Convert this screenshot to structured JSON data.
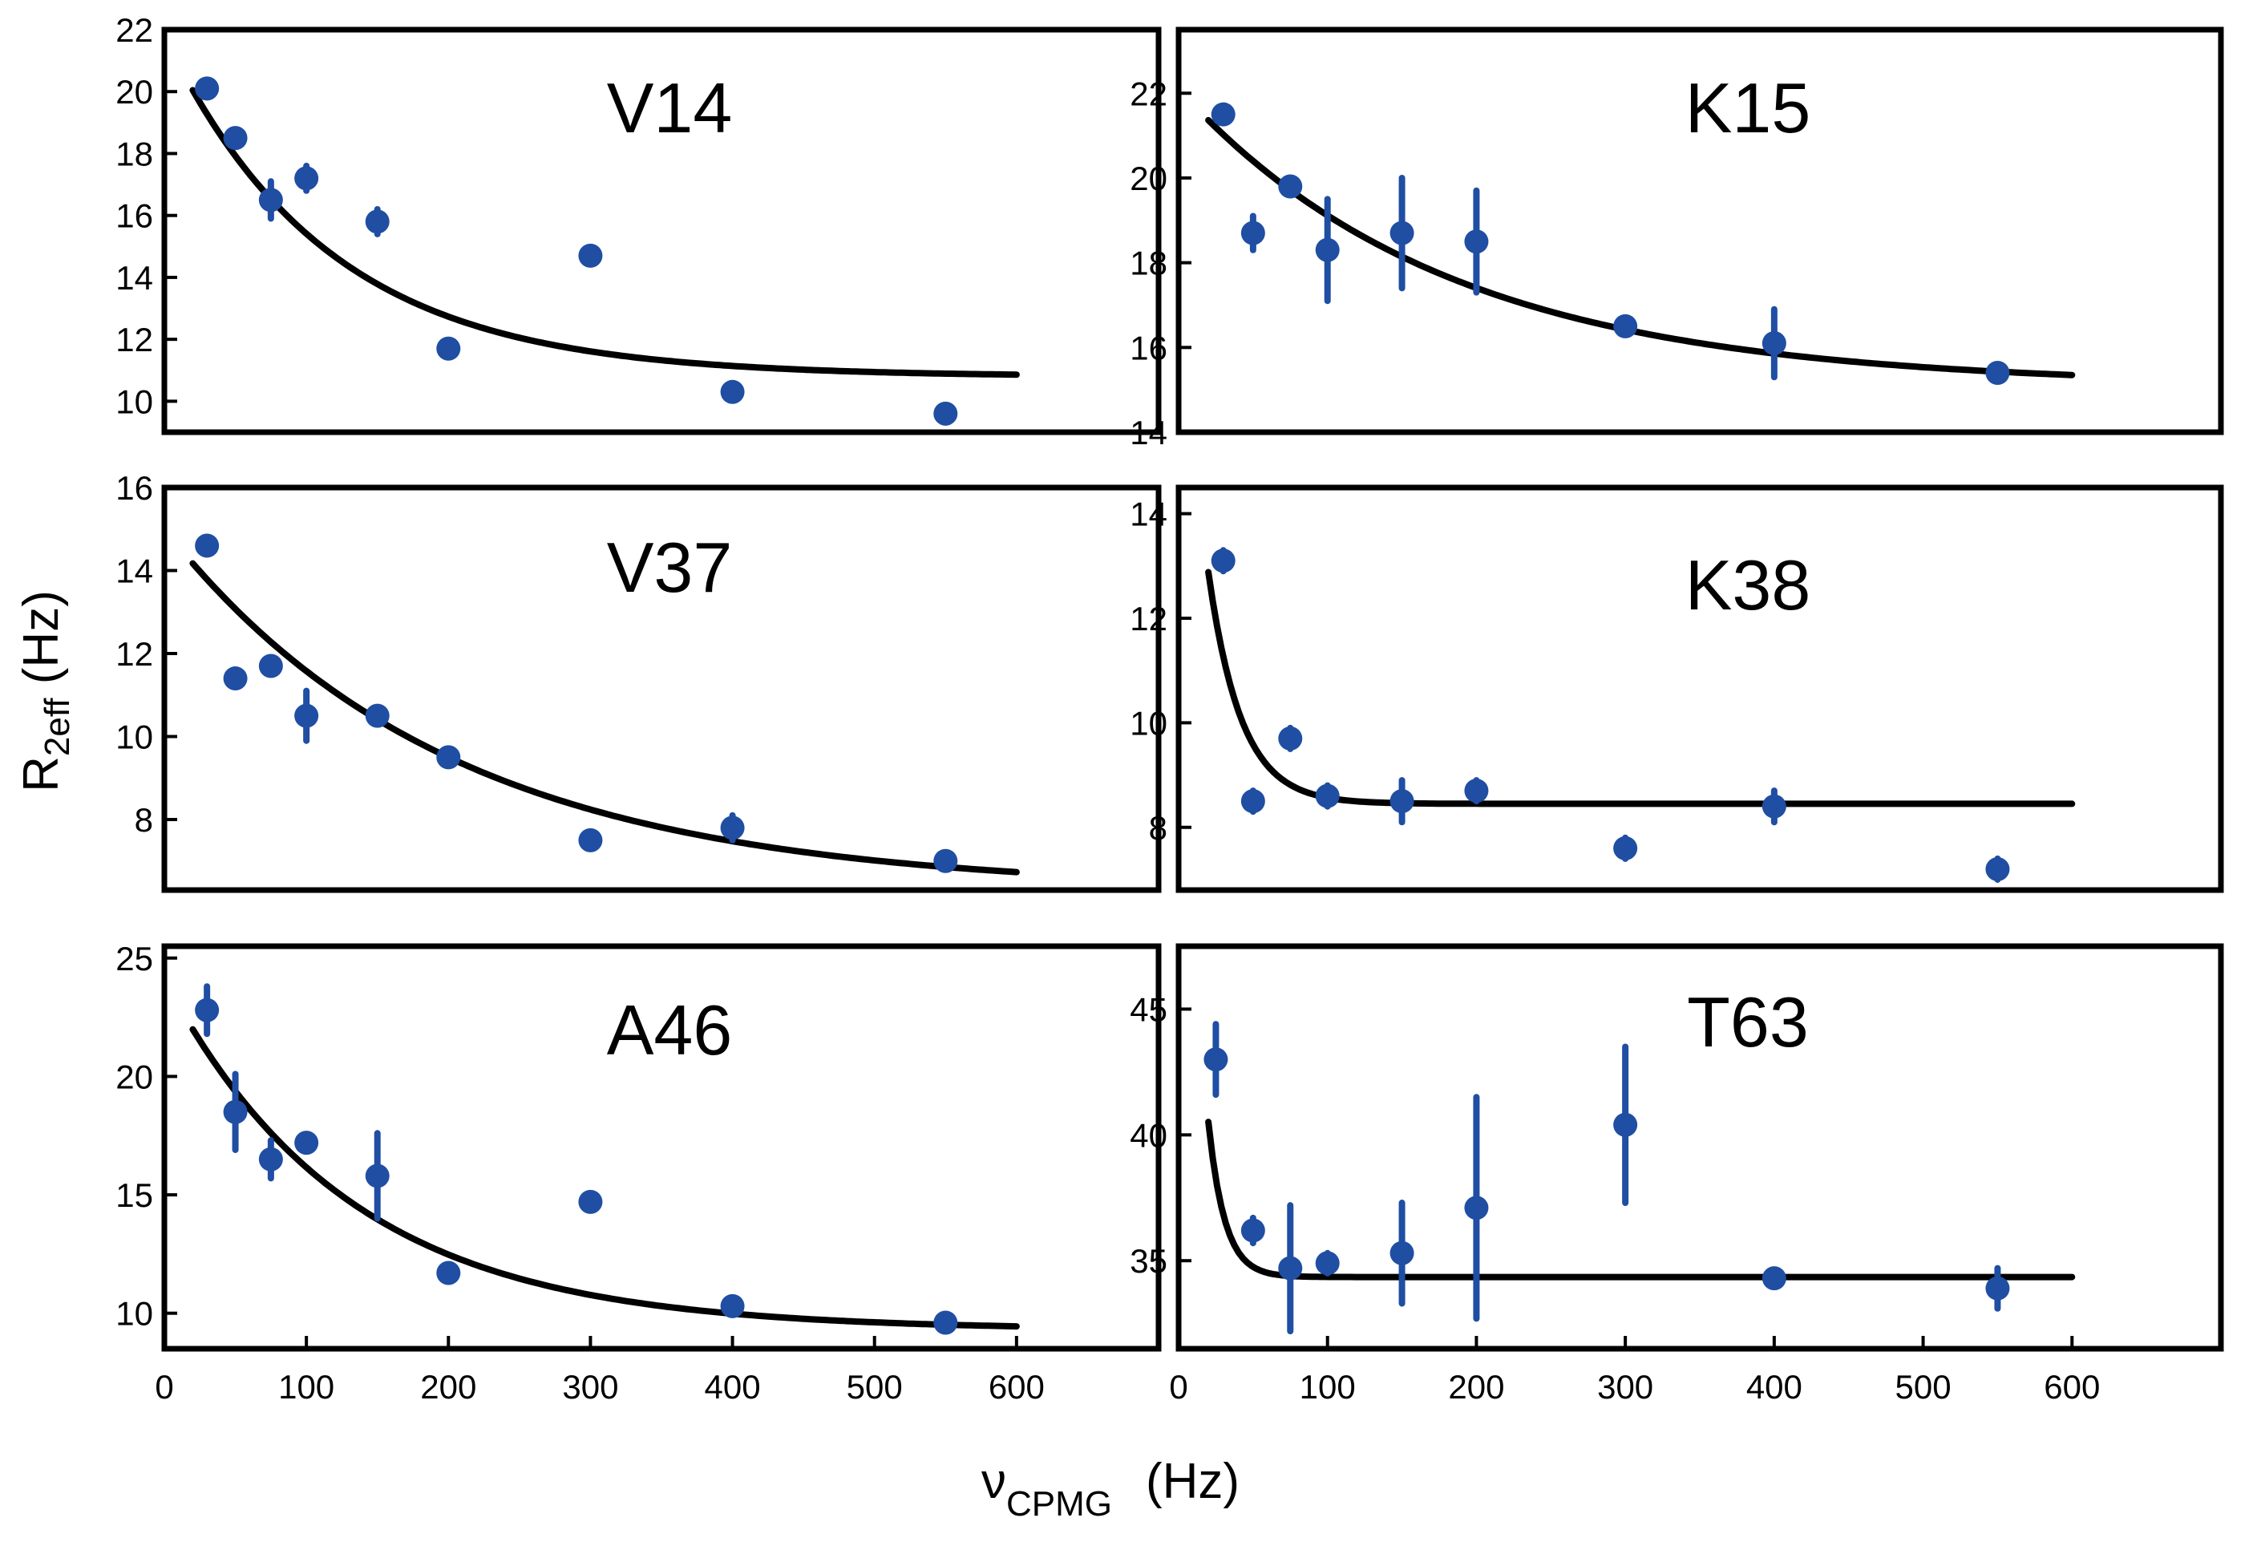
{
  "figure": {
    "ylabel_main": "R",
    "ylabel_sub": "2eff",
    "ylabel_unit": " (Hz)",
    "xlabel_main": "ν",
    "xlabel_sub": "CPMG",
    "xlabel_unit": "(Hz)"
  },
  "colors": {
    "points": "#1f4ea3",
    "fit": "#000000"
  },
  "chart_data": [
    {
      "type": "scatter",
      "title": "V14",
      "xlim": [
        0,
        700
      ],
      "ylim": [
        9,
        22
      ],
      "yticks": [
        10,
        12,
        14,
        16,
        18,
        20,
        22
      ],
      "xticks": [],
      "points": [
        {
          "x": 30,
          "y": 20.1,
          "err": 0.2
        },
        {
          "x": 50,
          "y": 18.5,
          "err": 0.2
        },
        {
          "x": 75,
          "y": 16.5,
          "err": 0.6
        },
        {
          "x": 100,
          "y": 17.2,
          "err": 0.4
        },
        {
          "x": 150,
          "y": 15.8,
          "err": 0.4
        },
        {
          "x": 200,
          "y": 11.7,
          "err": 0.2
        },
        {
          "x": 300,
          "y": 14.7,
          "err": 0.2
        },
        {
          "x": 400,
          "y": 10.3,
          "err": 0.2
        },
        {
          "x": 550,
          "y": 9.6,
          "err": 0.2
        }
      ],
      "fit": {
        "model": "exp",
        "base": 10.8,
        "amp": 11.0,
        "tau": 115,
        "xmin": 20,
        "xmax": 600
      }
    },
    {
      "type": "scatter",
      "title": "K15",
      "xlim": [
        0,
        700
      ],
      "ylim": [
        14,
        23.5
      ],
      "yticks": [
        14,
        16,
        18,
        20,
        22
      ],
      "xticks": [],
      "points": [
        {
          "x": 30,
          "y": 21.5,
          "err": 0.2
        },
        {
          "x": 50,
          "y": 18.7,
          "err": 0.4
        },
        {
          "x": 75,
          "y": 19.8,
          "err": 0.2
        },
        {
          "x": 100,
          "y": 18.3,
          "err": 1.2
        },
        {
          "x": 150,
          "y": 18.7,
          "err": 1.3
        },
        {
          "x": 200,
          "y": 18.5,
          "err": 1.2
        },
        {
          "x": 300,
          "y": 16.5,
          "err": 0.2
        },
        {
          "x": 400,
          "y": 16.1,
          "err": 0.8
        },
        {
          "x": 550,
          "y": 15.4,
          "err": 0.2
        }
      ],
      "fit": {
        "model": "exp",
        "base": 15.1,
        "amp": 7.0,
        "tau": 180,
        "xmin": 20,
        "xmax": 600
      }
    },
    {
      "type": "scatter",
      "title": "V37",
      "xlim": [
        0,
        700
      ],
      "ylim": [
        6.3,
        16
      ],
      "yticks": [
        8,
        10,
        12,
        14,
        16
      ],
      "xticks": [],
      "points": [
        {
          "x": 30,
          "y": 14.6,
          "err": 0.2
        },
        {
          "x": 50,
          "y": 11.4,
          "err": 0.2
        },
        {
          "x": 75,
          "y": 11.7,
          "err": 0.2
        },
        {
          "x": 100,
          "y": 10.5,
          "err": 0.6
        },
        {
          "x": 150,
          "y": 10.5,
          "err": 0.2
        },
        {
          "x": 200,
          "y": 9.5,
          "err": 0.2
        },
        {
          "x": 300,
          "y": 7.5,
          "err": 0.2
        },
        {
          "x": 400,
          "y": 7.8,
          "err": 0.3
        },
        {
          "x": 550,
          "y": 7.0,
          "err": 0.2
        }
      ],
      "fit": {
        "model": "exp",
        "base": 6.3,
        "amp": 8.7,
        "tau": 200,
        "xmin": 20,
        "xmax": 600
      }
    },
    {
      "type": "scatter",
      "title": "K38",
      "xlim": [
        0,
        700
      ],
      "ylim": [
        6.8,
        14.5
      ],
      "yticks": [
        8,
        10,
        12,
        14
      ],
      "xticks": [],
      "points": [
        {
          "x": 30,
          "y": 13.1,
          "err": 0.2
        },
        {
          "x": 50,
          "y": 8.5,
          "err": 0.2
        },
        {
          "x": 75,
          "y": 9.7,
          "err": 0.2
        },
        {
          "x": 100,
          "y": 8.6,
          "err": 0.2
        },
        {
          "x": 150,
          "y": 8.5,
          "err": 0.4
        },
        {
          "x": 200,
          "y": 8.7,
          "err": 0.2
        },
        {
          "x": 300,
          "y": 7.6,
          "err": 0.2
        },
        {
          "x": 400,
          "y": 8.4,
          "err": 0.3
        },
        {
          "x": 550,
          "y": 7.2,
          "err": 0.2
        }
      ],
      "fit": {
        "model": "exp",
        "base": 8.45,
        "amp": 11.0,
        "tau": 22,
        "xmin": 20,
        "xmax": 600
      }
    },
    {
      "type": "scatter",
      "title": "A46",
      "xlim": [
        0,
        700
      ],
      "ylim": [
        8.5,
        25.5
      ],
      "yticks": [
        10,
        15,
        20,
        25
      ],
      "xticks": [
        0,
        100,
        200,
        300,
        400,
        500,
        600
      ],
      "points": [
        {
          "x": 30,
          "y": 22.8,
          "err": 1.0
        },
        {
          "x": 50,
          "y": 18.5,
          "err": 1.6
        },
        {
          "x": 75,
          "y": 16.5,
          "err": 0.8
        },
        {
          "x": 100,
          "y": 17.2,
          "err": 0.2
        },
        {
          "x": 150,
          "y": 15.8,
          "err": 1.8
        },
        {
          "x": 200,
          "y": 11.7,
          "err": 0.2
        },
        {
          "x": 300,
          "y": 14.7,
          "err": 0.2
        },
        {
          "x": 400,
          "y": 10.3,
          "err": 0.2
        },
        {
          "x": 550,
          "y": 9.6,
          "err": 0.2
        }
      ],
      "fit": {
        "model": "exp",
        "base": 9.3,
        "amp": 14.8,
        "tau": 130,
        "xmin": 20,
        "xmax": 600
      }
    },
    {
      "type": "scatter",
      "title": "T63",
      "xlim": [
        0,
        700
      ],
      "ylim": [
        31.5,
        47.5
      ],
      "yticks": [
        35,
        40,
        45
      ],
      "xticks": [
        0,
        100,
        200,
        300,
        400,
        500,
        600
      ],
      "points": [
        {
          "x": 25,
          "y": 43.0,
          "err": 1.4
        },
        {
          "x": 50,
          "y": 36.2,
          "err": 0.5
        },
        {
          "x": 75,
          "y": 34.7,
          "err": 2.5
        },
        {
          "x": 100,
          "y": 34.9,
          "err": 0.4
        },
        {
          "x": 150,
          "y": 35.3,
          "err": 2.0
        },
        {
          "x": 200,
          "y": 37.1,
          "err": 4.4
        },
        {
          "x": 300,
          "y": 40.4,
          "err": 3.1
        },
        {
          "x": 400,
          "y": 34.3,
          "err": 0.2
        },
        {
          "x": 550,
          "y": 33.9,
          "err": 0.8
        }
      ],
      "fit": {
        "model": "exp",
        "base": 34.35,
        "amp": 38.0,
        "tau": 11,
        "xmin": 20,
        "xmax": 600
      }
    }
  ]
}
